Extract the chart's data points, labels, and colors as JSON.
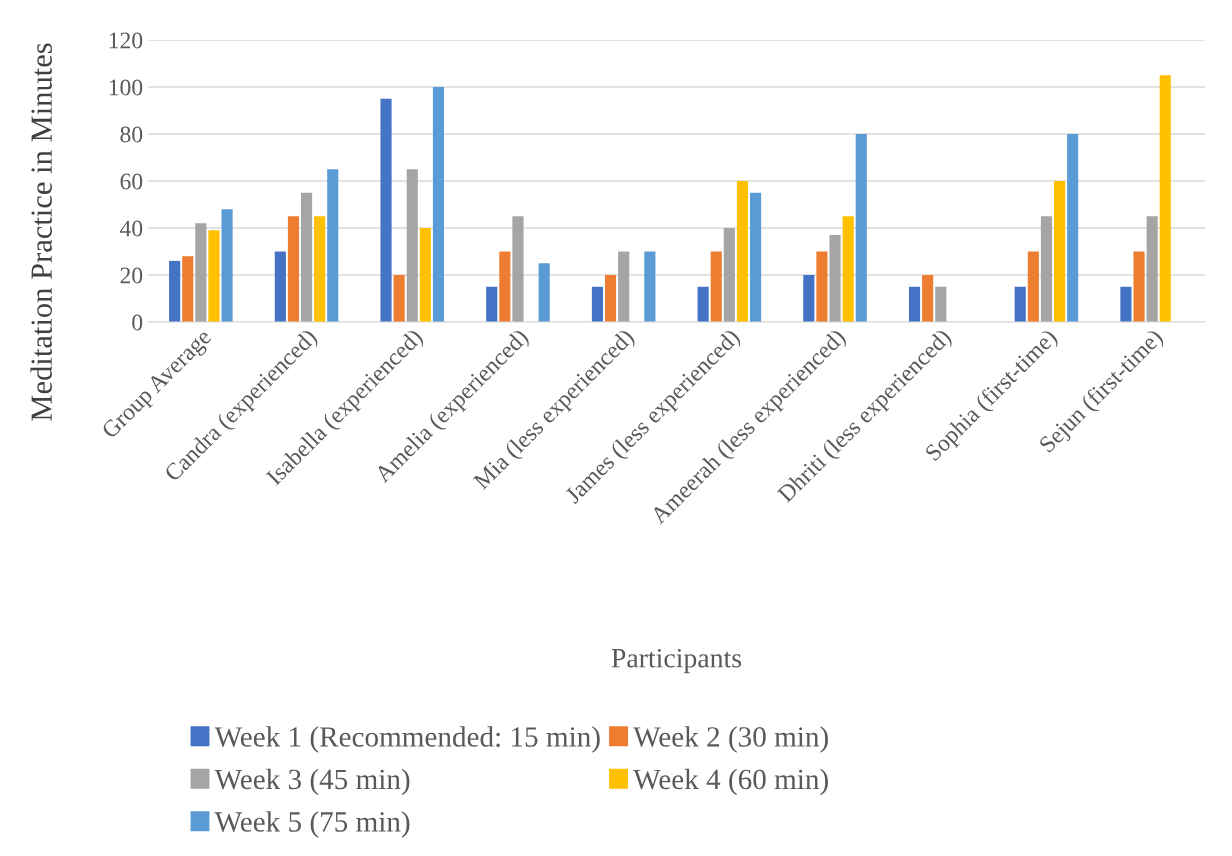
{
  "chart_data": {
    "type": "bar",
    "xlabel": "Participants",
    "ylabel": "Meditation Practice in Minutes",
    "categories": [
      "Group Average",
      "Candra (experienced)",
      "Isabella (experienced)",
      "Amelia (experienced)",
      "Mia (less experienced)",
      "James (less experienced)",
      "Ameerah (less experienced)",
      "Dhriti (less experienced)",
      "Sophia (first-time)",
      "Sejun (first-time)"
    ],
    "series": [
      {
        "name": "Week 1 (Recommended: 15 min)",
        "color": "#4472c4",
        "values": [
          26,
          30,
          95,
          15,
          15,
          15,
          20,
          15,
          15,
          15
        ]
      },
      {
        "name": "Week 2 (30 min)",
        "color": "#ed7d31",
        "values": [
          28,
          45,
          20,
          30,
          20,
          30,
          30,
          20,
          30,
          30
        ]
      },
      {
        "name": "Week 3 (45 min)",
        "color": "#a5a5a5",
        "values": [
          42,
          55,
          65,
          45,
          30,
          40,
          37,
          15,
          45,
          45
        ]
      },
      {
        "name": "Week 4 (60 min)",
        "color": "#ffc000",
        "values": [
          39,
          45,
          40,
          null,
          null,
          60,
          45,
          null,
          60,
          105
        ]
      },
      {
        "name": "Week 5 (75 min)",
        "color": "#5b9bd5",
        "values": [
          48,
          65,
          100,
          25,
          30,
          55,
          80,
          null,
          80,
          null
        ]
      }
    ],
    "ylim": [
      0,
      120
    ],
    "yticks": [
      0,
      20,
      40,
      60,
      80,
      100,
      120
    ],
    "grid": "y",
    "legend": "bottom"
  }
}
